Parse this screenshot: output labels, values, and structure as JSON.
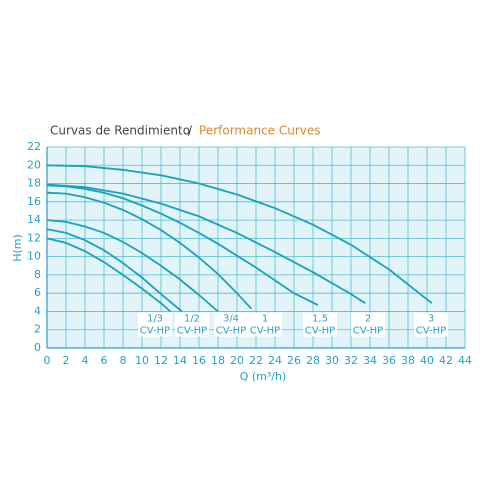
{
  "chart_data": {
    "type": "line",
    "title_parts": [
      "Curvas de Rendimiento",
      "/",
      "Performance Curves"
    ],
    "x_label": "Q (m³/h)",
    "y_label": "H(m)",
    "xlim": [
      0,
      44
    ],
    "ylim": [
      0,
      22
    ],
    "xticks": [
      0,
      2,
      4,
      6,
      8,
      10,
      12,
      14,
      16,
      18,
      20,
      22,
      24,
      26,
      28,
      30,
      32,
      34,
      36,
      38,
      40,
      42,
      44
    ],
    "yticks": [
      0,
      2,
      4,
      6,
      8,
      10,
      12,
      14,
      16,
      18,
      20,
      22
    ],
    "grid": true,
    "color": "#1aa3b8",
    "series": [
      {
        "name": "1/3",
        "sub": "CV-HP",
        "x": [
          0,
          2,
          4,
          6,
          8,
          10,
          12,
          13
        ],
        "values": [
          12,
          11.5,
          10.6,
          9.4,
          8,
          6.5,
          4.9,
          4
        ]
      },
      {
        "name": "1/2",
        "sub": "CV-HP",
        "x": [
          0,
          2,
          4,
          6,
          8,
          10,
          12,
          14.2
        ],
        "values": [
          13,
          12.6,
          11.8,
          10.7,
          9.3,
          7.7,
          5.9,
          4
        ]
      },
      {
        "name": "3/4",
        "sub": "CV-HP",
        "x": [
          0,
          2,
          4,
          6,
          8,
          10,
          12,
          14,
          16,
          18
        ],
        "values": [
          14,
          13.8,
          13.3,
          12.6,
          11.6,
          10.4,
          9,
          7.5,
          5.8,
          4
        ]
      },
      {
        "name": "1",
        "sub": "CV-HP",
        "x": [
          0,
          2,
          4,
          6,
          8,
          10,
          12,
          14,
          16,
          18,
          20,
          21.5
        ],
        "values": [
          17,
          16.9,
          16.5,
          15.9,
          15.1,
          14.1,
          12.9,
          11.5,
          9.9,
          8.1,
          6,
          4.3
        ]
      },
      {
        "name": "1,5",
        "sub": "CV-HP",
        "x": [
          0,
          2,
          4,
          6,
          8,
          10,
          12,
          14,
          16,
          18,
          20,
          22,
          24,
          26,
          28.5
        ],
        "values": [
          17.8,
          17.7,
          17.4,
          17,
          16.4,
          15.6,
          14.7,
          13.7,
          12.6,
          11.4,
          10.1,
          8.8,
          7.4,
          6,
          4.7
        ]
      },
      {
        "name": "2",
        "sub": "CV-HP",
        "x": [
          0,
          4,
          8,
          12,
          16,
          20,
          24,
          28,
          32,
          33.5
        ],
        "values": [
          17.9,
          17.6,
          16.9,
          15.8,
          14.4,
          12.6,
          10.5,
          8.3,
          5.9,
          4.9
        ]
      },
      {
        "name": "3",
        "sub": "CV-HP",
        "x": [
          0,
          4,
          8,
          12,
          16,
          20,
          24,
          28,
          32,
          36,
          40.5
        ],
        "values": [
          20,
          19.9,
          19.5,
          18.9,
          18,
          16.8,
          15.3,
          13.5,
          11.3,
          8.6,
          4.9
        ]
      }
    ]
  }
}
